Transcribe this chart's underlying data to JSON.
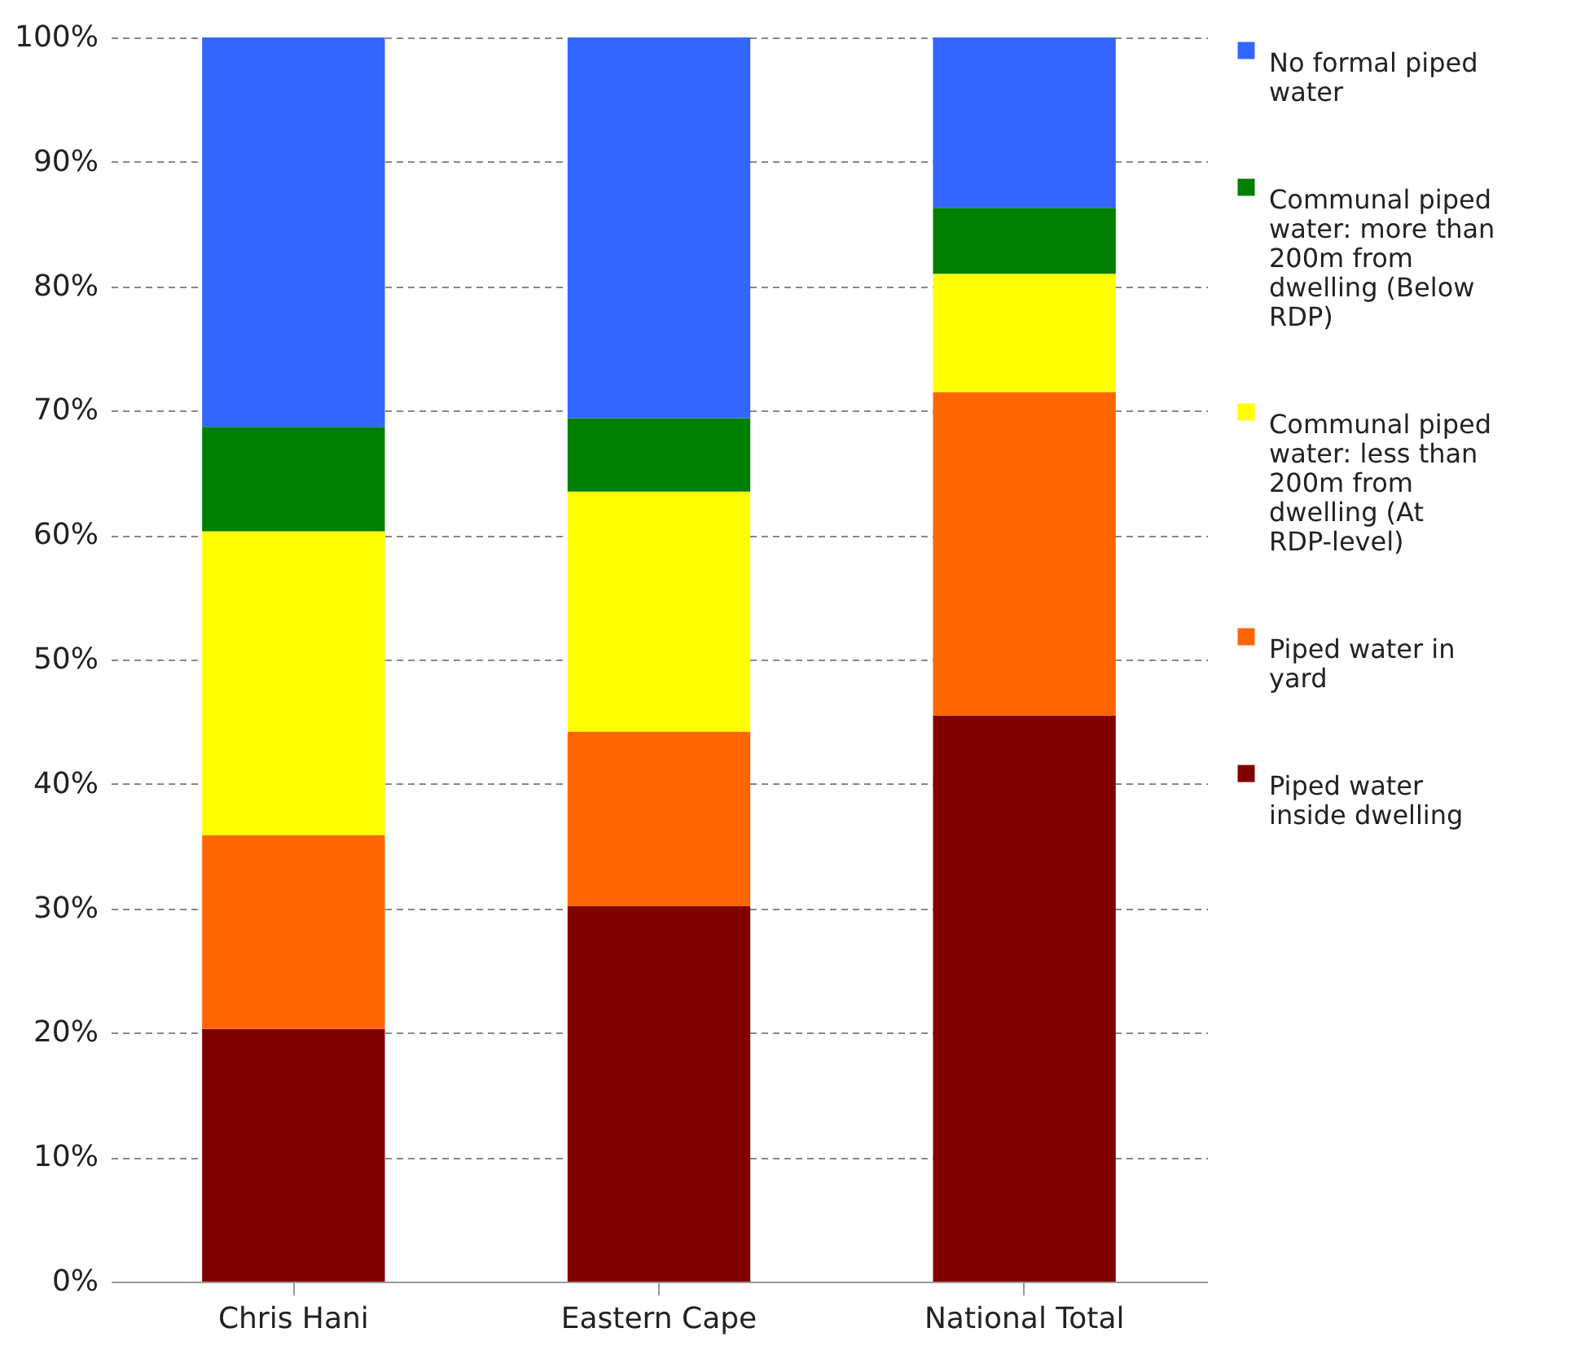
{
  "chart_data": {
    "type": "bar",
    "stacked": true,
    "categories": [
      "Chris Hani",
      "Eastern Cape",
      "National Total"
    ],
    "series": [
      {
        "name": "Piped water inside dwelling",
        "color": "#800000",
        "values": [
          20.3,
          30.2,
          45.5
        ]
      },
      {
        "name": "Piped water in yard",
        "color": "#ff6600",
        "values": [
          15.6,
          14.0,
          26.0
        ]
      },
      {
        "name": "Communal piped water: less than 200m from dwelling (At RDP-level)",
        "color": "#ffff00",
        "values": [
          24.4,
          19.3,
          9.5
        ]
      },
      {
        "name": "Communal piped water: more than 200m from dwelling (Below RDP)",
        "color": "#008000",
        "values": [
          8.4,
          5.9,
          5.3
        ]
      },
      {
        "name": "No formal piped water",
        "color": "#3366ff",
        "values": [
          31.3,
          30.6,
          13.7
        ]
      }
    ],
    "ylim": [
      0,
      100
    ],
    "yticks": [
      {
        "value": 0,
        "label": "0%"
      },
      {
        "value": 10,
        "label": "10%"
      },
      {
        "value": 20,
        "label": "20%"
      },
      {
        "value": 30,
        "label": "30%"
      },
      {
        "value": 40,
        "label": "40%"
      },
      {
        "value": 50,
        "label": "50%"
      },
      {
        "value": 60,
        "label": "60%"
      },
      {
        "value": 70,
        "label": "70%"
      },
      {
        "value": 80,
        "label": "80%"
      },
      {
        "value": 90,
        "label": "90%"
      },
      {
        "value": 100,
        "label": "100%"
      }
    ],
    "grid": "y",
    "legend": "right"
  }
}
